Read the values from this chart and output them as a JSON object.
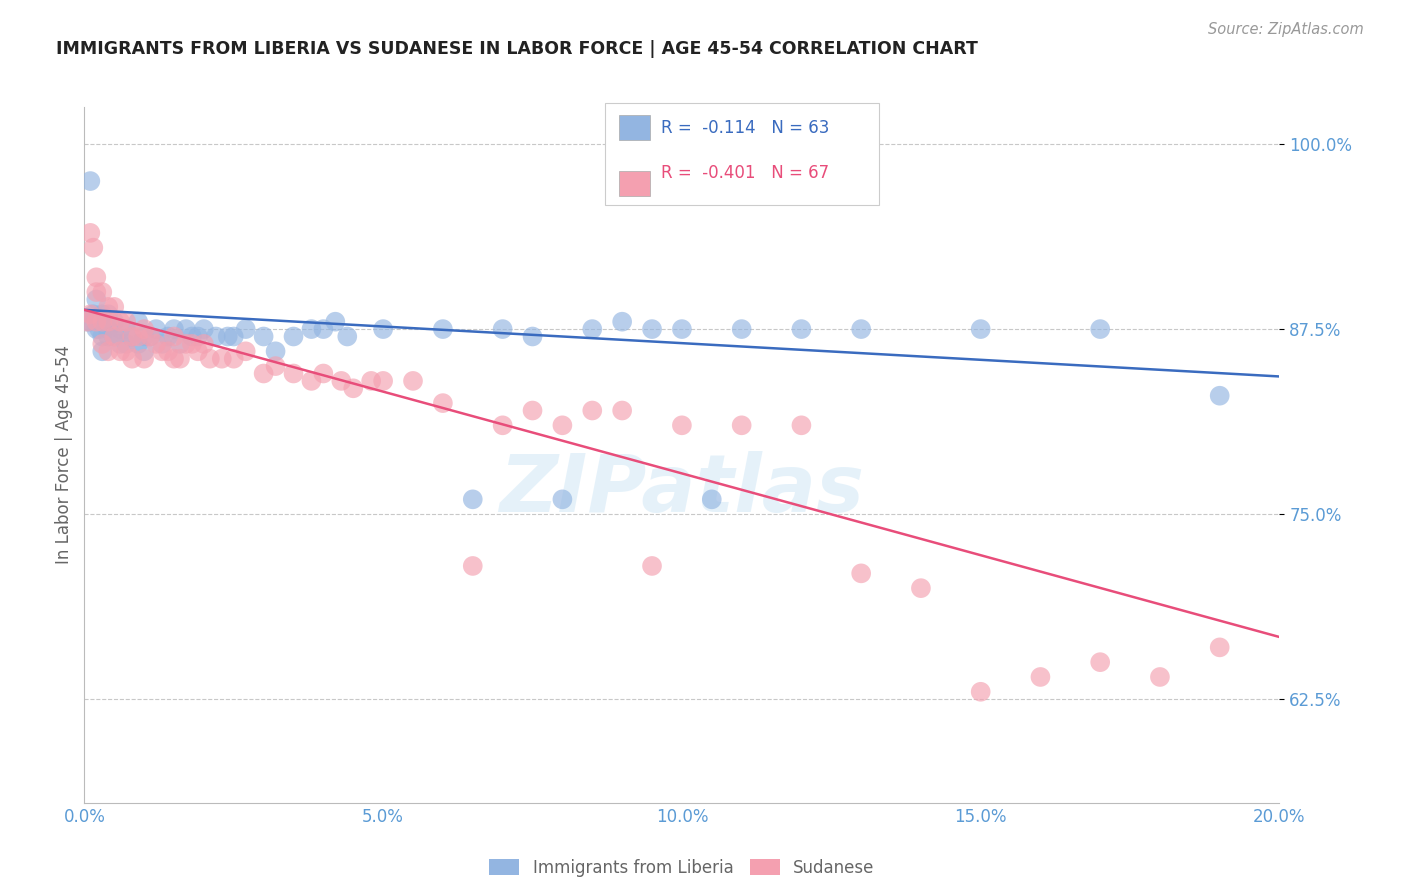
{
  "title": "IMMIGRANTS FROM LIBERIA VS SUDANESE IN LABOR FORCE | AGE 45-54 CORRELATION CHART",
  "source_text": "Source: ZipAtlas.com",
  "ylabel": "In Labor Force | Age 45-54",
  "xlim": [
    0.0,
    0.2
  ],
  "ylim": [
    0.555,
    1.025
  ],
  "xticks": [
    0.0,
    0.05,
    0.1,
    0.15,
    0.2
  ],
  "xticklabels": [
    "0.0%",
    "5.0%",
    "10.0%",
    "15.0%",
    "20.0%"
  ],
  "yticks": [
    0.625,
    0.75,
    0.875,
    1.0
  ],
  "yticklabels": [
    "62.5%",
    "75.0%",
    "87.5%",
    "100.0%"
  ],
  "blue_color": "#93b5e1",
  "pink_color": "#f4a0b0",
  "blue_line_color": "#3a6bbf",
  "pink_line_color": "#e84d7a",
  "legend_R_blue": "R =  -0.114",
  "legend_N_blue": "N = 63",
  "legend_R_pink": "R =  -0.401",
  "legend_N_pink": "N = 67",
  "label_blue": "Immigrants from Liberia",
  "label_pink": "Sudanese",
  "watermark": "ZIPatlas",
  "tick_color": "#5b9bd5",
  "grid_color": "#c8c8c8",
  "background_color": "#ffffff",
  "blue_scatter_x": [
    0.0005,
    0.001,
    0.001,
    0.0015,
    0.002,
    0.002,
    0.0025,
    0.003,
    0.003,
    0.003,
    0.003,
    0.004,
    0.004,
    0.004,
    0.005,
    0.005,
    0.006,
    0.006,
    0.007,
    0.007,
    0.008,
    0.009,
    0.009,
    0.01,
    0.01,
    0.011,
    0.012,
    0.013,
    0.014,
    0.015,
    0.016,
    0.017,
    0.018,
    0.019,
    0.02,
    0.022,
    0.024,
    0.025,
    0.027,
    0.03,
    0.032,
    0.035,
    0.038,
    0.04,
    0.042,
    0.044,
    0.05,
    0.06,
    0.065,
    0.07,
    0.075,
    0.08,
    0.085,
    0.09,
    0.095,
    0.1,
    0.105,
    0.11,
    0.12,
    0.13,
    0.15,
    0.17,
    0.19
  ],
  "blue_scatter_y": [
    0.88,
    0.975,
    0.88,
    0.885,
    0.895,
    0.875,
    0.875,
    0.885,
    0.88,
    0.87,
    0.86,
    0.885,
    0.875,
    0.87,
    0.88,
    0.87,
    0.875,
    0.865,
    0.875,
    0.865,
    0.87,
    0.88,
    0.865,
    0.87,
    0.86,
    0.87,
    0.875,
    0.865,
    0.87,
    0.875,
    0.865,
    0.875,
    0.87,
    0.87,
    0.875,
    0.87,
    0.87,
    0.87,
    0.875,
    0.87,
    0.86,
    0.87,
    0.875,
    0.875,
    0.88,
    0.87,
    0.875,
    0.875,
    0.76,
    0.875,
    0.87,
    0.76,
    0.875,
    0.88,
    0.875,
    0.875,
    0.76,
    0.875,
    0.875,
    0.875,
    0.875,
    0.875,
    0.83
  ],
  "pink_scatter_x": [
    0.0005,
    0.001,
    0.001,
    0.0015,
    0.002,
    0.002,
    0.002,
    0.003,
    0.003,
    0.003,
    0.004,
    0.004,
    0.004,
    0.005,
    0.005,
    0.006,
    0.006,
    0.007,
    0.007,
    0.008,
    0.008,
    0.009,
    0.01,
    0.01,
    0.011,
    0.012,
    0.013,
    0.014,
    0.015,
    0.015,
    0.016,
    0.017,
    0.018,
    0.019,
    0.02,
    0.021,
    0.023,
    0.025,
    0.027,
    0.03,
    0.032,
    0.035,
    0.038,
    0.04,
    0.043,
    0.045,
    0.048,
    0.05,
    0.055,
    0.06,
    0.065,
    0.07,
    0.075,
    0.08,
    0.085,
    0.09,
    0.095,
    0.1,
    0.11,
    0.12,
    0.13,
    0.14,
    0.15,
    0.16,
    0.17,
    0.18,
    0.19
  ],
  "pink_scatter_y": [
    0.88,
    0.94,
    0.885,
    0.93,
    0.91,
    0.9,
    0.88,
    0.9,
    0.88,
    0.865,
    0.89,
    0.88,
    0.86,
    0.89,
    0.87,
    0.88,
    0.86,
    0.88,
    0.86,
    0.87,
    0.855,
    0.87,
    0.875,
    0.855,
    0.87,
    0.865,
    0.86,
    0.86,
    0.87,
    0.855,
    0.855,
    0.865,
    0.865,
    0.86,
    0.865,
    0.855,
    0.855,
    0.855,
    0.86,
    0.845,
    0.85,
    0.845,
    0.84,
    0.845,
    0.84,
    0.835,
    0.84,
    0.84,
    0.84,
    0.825,
    0.715,
    0.81,
    0.82,
    0.81,
    0.82,
    0.82,
    0.715,
    0.81,
    0.81,
    0.81,
    0.71,
    0.7,
    0.63,
    0.64,
    0.65,
    0.64,
    0.66
  ],
  "blue_trend_x": [
    0.0,
    0.2
  ],
  "blue_trend_y": [
    0.888,
    0.843
  ],
  "pink_trend_x": [
    0.0,
    0.2
  ],
  "pink_trend_y": [
    0.888,
    0.667
  ]
}
